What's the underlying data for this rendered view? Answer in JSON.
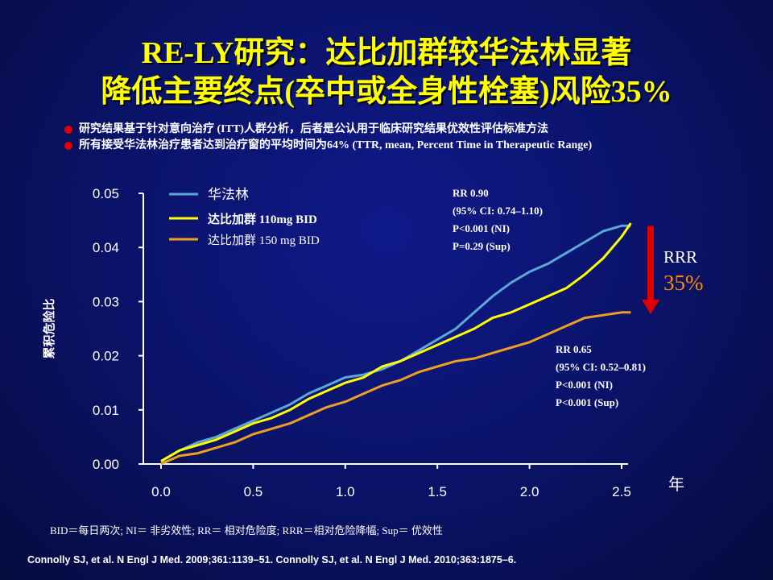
{
  "slide": {
    "title_line1": "RE-LY研究：达比加群较华法林显著",
    "title_line2": "降低主要终点(卒中或全身性栓塞)风险35%",
    "bullets": [
      "研究结果基于针对意向治疗 (ITT)人群分析，后者是公认用于临床研究结果优效性评估标准方法",
      "所有接受华法林治疗患者达到治疗窗的平均时间为64% (TTR, mean, Percent Time in Therapeutic Range)"
    ],
    "footnote": "BID＝每日两次; NI＝ 非劣效性; RR＝ 相对危险度; RRR＝相对危险降幅; Sup＝ 优效性",
    "citation": "Connolly SJ, et al. N Engl J Med. 2009;361:1139–51. Connolly SJ, et al. N Engl J Med. 2010;363:1875–6."
  },
  "colors": {
    "background": "#0a1265",
    "title": "#ffff00",
    "bullet_dot": "#e00000",
    "warfarin": "#5aa8d8",
    "dabigatran_110": "#ffff00",
    "dabigatran_150": "#f0a020",
    "rrr_arrow": "#e00000",
    "rrr_value": "#ff8c00"
  },
  "chart_data": {
    "type": "line",
    "ylabel": "累积危险比",
    "xlabel": "年",
    "xlim": [
      0,
      2.6
    ],
    "ylim": [
      0,
      0.05
    ],
    "x_ticks": [
      0.0,
      0.5,
      1.0,
      1.5,
      2.0,
      2.5
    ],
    "x_tick_labels": [
      "0.0",
      "0.5",
      "1.0",
      "1.5",
      "2.0",
      "2.5"
    ],
    "y_ticks": [
      0.0,
      0.01,
      0.02,
      0.03,
      0.04,
      0.05
    ],
    "y_tick_labels": [
      "0.00",
      "0.01",
      "0.02",
      "0.03",
      "0.04",
      "0.05"
    ],
    "grid": false,
    "legend_position": "top-left",
    "series": [
      {
        "name": "华法林",
        "color_key": "warfarin",
        "points": [
          [
            0,
            0.0005
          ],
          [
            0.1,
            0.0025
          ],
          [
            0.2,
            0.004
          ],
          [
            0.3,
            0.005
          ],
          [
            0.4,
            0.0065
          ],
          [
            0.5,
            0.008
          ],
          [
            0.6,
            0.0095
          ],
          [
            0.7,
            0.011
          ],
          [
            0.8,
            0.013
          ],
          [
            0.9,
            0.0145
          ],
          [
            1.0,
            0.016
          ],
          [
            1.1,
            0.0165
          ],
          [
            1.2,
            0.0175
          ],
          [
            1.3,
            0.019
          ],
          [
            1.4,
            0.021
          ],
          [
            1.5,
            0.023
          ],
          [
            1.6,
            0.025
          ],
          [
            1.7,
            0.028
          ],
          [
            1.8,
            0.031
          ],
          [
            1.9,
            0.0335
          ],
          [
            2.0,
            0.0355
          ],
          [
            2.1,
            0.037
          ],
          [
            2.2,
            0.039
          ],
          [
            2.3,
            0.041
          ],
          [
            2.4,
            0.043
          ],
          [
            2.5,
            0.044
          ],
          [
            2.55,
            0.044
          ]
        ]
      },
      {
        "name": "达比加群 110mg BID",
        "color_key": "dabigatran_110",
        "points": [
          [
            0,
            0.0005
          ],
          [
            0.1,
            0.0025
          ],
          [
            0.2,
            0.0035
          ],
          [
            0.3,
            0.0045
          ],
          [
            0.4,
            0.006
          ],
          [
            0.5,
            0.0075
          ],
          [
            0.6,
            0.0085
          ],
          [
            0.7,
            0.01
          ],
          [
            0.8,
            0.012
          ],
          [
            0.9,
            0.0135
          ],
          [
            1.0,
            0.015
          ],
          [
            1.1,
            0.016
          ],
          [
            1.2,
            0.018
          ],
          [
            1.3,
            0.019
          ],
          [
            1.4,
            0.0205
          ],
          [
            1.5,
            0.022
          ],
          [
            1.6,
            0.0235
          ],
          [
            1.7,
            0.025
          ],
          [
            1.8,
            0.027
          ],
          [
            1.9,
            0.028
          ],
          [
            2.0,
            0.0295
          ],
          [
            2.1,
            0.031
          ],
          [
            2.2,
            0.0325
          ],
          [
            2.3,
            0.035
          ],
          [
            2.4,
            0.038
          ],
          [
            2.5,
            0.042
          ],
          [
            2.55,
            0.0445
          ]
        ]
      },
      {
        "name": "达比加群 150 mg BID",
        "color_key": "dabigatran_150",
        "points": [
          [
            0,
            0
          ],
          [
            0.1,
            0.0015
          ],
          [
            0.2,
            0.002
          ],
          [
            0.3,
            0.003
          ],
          [
            0.4,
            0.004
          ],
          [
            0.5,
            0.0055
          ],
          [
            0.6,
            0.0065
          ],
          [
            0.7,
            0.0075
          ],
          [
            0.8,
            0.009
          ],
          [
            0.9,
            0.0105
          ],
          [
            1.0,
            0.0115
          ],
          [
            1.1,
            0.013
          ],
          [
            1.2,
            0.0145
          ],
          [
            1.3,
            0.0155
          ],
          [
            1.4,
            0.017
          ],
          [
            1.5,
            0.018
          ],
          [
            1.6,
            0.019
          ],
          [
            1.7,
            0.0195
          ],
          [
            1.8,
            0.0205
          ],
          [
            1.9,
            0.0215
          ],
          [
            2.0,
            0.0225
          ],
          [
            2.1,
            0.024
          ],
          [
            2.2,
            0.0255
          ],
          [
            2.3,
            0.027
          ],
          [
            2.4,
            0.0275
          ],
          [
            2.5,
            0.028
          ],
          [
            2.55,
            0.028
          ]
        ]
      }
    ],
    "annotations": {
      "rr_110": [
        "RR 0.90",
        "(95% CI: 0.74–1.10)",
        "P<0.001 (NI)",
        "P=0.29 (Sup)"
      ],
      "rr_150": [
        "RR 0.65",
        "(95% CI: 0.52–0.81)",
        "P<0.001 (NI)",
        "P<0.001 (Sup)"
      ],
      "rrr_label": "RRR",
      "rrr_value": "35%",
      "rrr_arrow_from": 0.044,
      "rrr_arrow_to": 0.028
    }
  }
}
